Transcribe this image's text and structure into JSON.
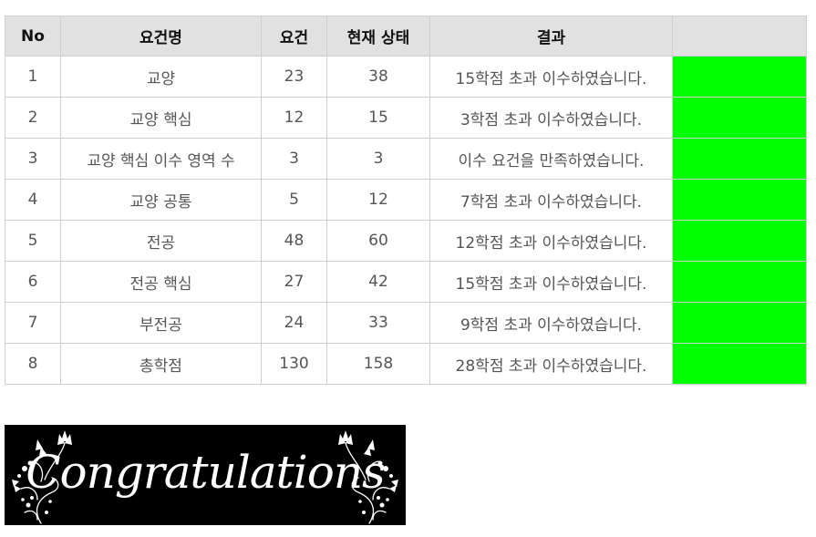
{
  "table": {
    "headers": {
      "no": "No",
      "name": "요건명",
      "requirement": "요건",
      "current": "현재 상태",
      "result": "결과",
      "status": ""
    },
    "rows": [
      {
        "no": "1",
        "name": "교양",
        "requirement": "23",
        "current": "38",
        "result": "15학점 초과 이수하였습니다."
      },
      {
        "no": "2",
        "name": "교양 핵심",
        "requirement": "12",
        "current": "15",
        "result": "3학점 초과 이수하였습니다."
      },
      {
        "no": "3",
        "name": "교양 핵심 이수 영역 수",
        "requirement": "3",
        "current": "3",
        "result": "이수 요건을 만족하였습니다."
      },
      {
        "no": "4",
        "name": "교양 공통",
        "requirement": "5",
        "current": "12",
        "result": "7학점 초과 이수하였습니다."
      },
      {
        "no": "5",
        "name": "전공",
        "requirement": "48",
        "current": "60",
        "result": "12학점 초과 이수하였습니다."
      },
      {
        "no": "6",
        "name": "전공 핵심",
        "requirement": "27",
        "current": "42",
        "result": "15학점 초과 이수하였습니다."
      },
      {
        "no": "7",
        "name": "부전공",
        "requirement": "24",
        "current": "33",
        "result": "9학점 초과 이수하였습니다."
      },
      {
        "no": "8",
        "name": "총학점",
        "requirement": "130",
        "current": "158",
        "result": "28학점 초과 이수하였습니다."
      }
    ],
    "status_color": "#00ff00"
  },
  "banner": {
    "text": "Congratulations",
    "background": "#000000",
    "ornament_icon": "floral-flourish-icon"
  }
}
